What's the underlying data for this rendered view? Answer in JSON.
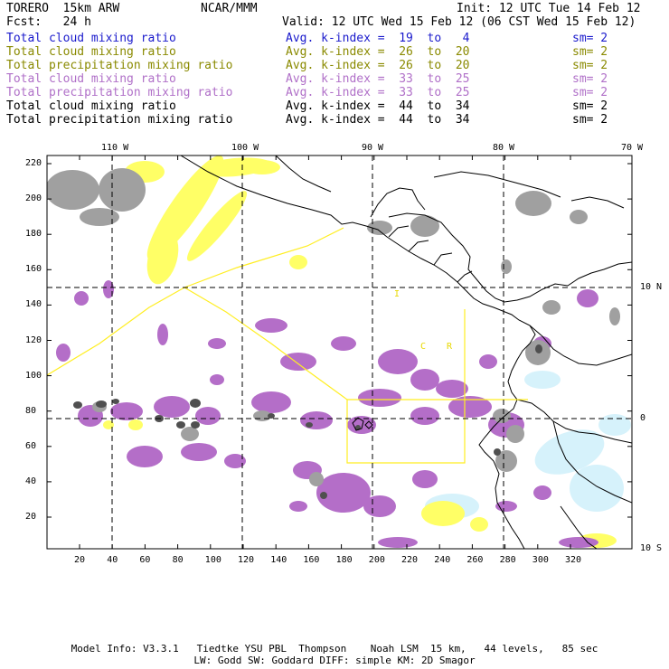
{
  "header": {
    "model": "TORERO  15km ARW",
    "org": "NCAR/MMM",
    "init": "Init: 12 UTC Tue 14 Feb 12",
    "fcst": "Fcst:   24 h",
    "valid": "Valid: 12 UTC Wed 15 Feb 12 (06 CST Wed 15 Feb 12)"
  },
  "legend": [
    {
      "name": "Total cloud mixing ratio",
      "kindex": "Avg. k-index =  19  to   4",
      "sm": "sm= 2",
      "color": "#1a1acc"
    },
    {
      "name": "Total cloud mixing ratio",
      "kindex": "Avg. k-index =  26  to  20",
      "sm": "sm= 2",
      "color": "#8a8a00"
    },
    {
      "name": "Total precipitation mixing ratio",
      "kindex": "Avg. k-index =  26  to  20",
      "sm": "sm= 2",
      "color": "#8a8a00"
    },
    {
      "name": "Total cloud mixing ratio",
      "kindex": "Avg. k-index =  33  to  25",
      "sm": "sm= 2",
      "color": "#b070c8"
    },
    {
      "name": "Total precipitation mixing ratio",
      "kindex": "Avg. k-index =  33  to  25",
      "sm": "sm= 2",
      "color": "#b070c8"
    },
    {
      "name": "Total cloud mixing ratio",
      "kindex": "Avg. k-index =  44  to  34",
      "sm": "sm= 2",
      "color": "#000000"
    },
    {
      "name": "Total precipitation mixing ratio",
      "kindex": "Avg. k-index =  44  to  34",
      "sm": "sm= 2",
      "color": "#000000"
    }
  ],
  "map": {
    "lon_labels": [
      "110 W",
      "100 W",
      "90 W",
      "80 W",
      "70 W"
    ],
    "lat_labels": [
      "10 N",
      "0",
      "10 S"
    ],
    "y_ticks": [
      "220",
      "200",
      "180",
      "160",
      "140",
      "120",
      "100",
      "80",
      "60",
      "40",
      "20"
    ],
    "x_ticks": [
      "20",
      "40",
      "60",
      "80",
      "100",
      "120",
      "140",
      "160",
      "180",
      "200",
      "220",
      "240",
      "260",
      "280",
      "300",
      "320"
    ],
    "region_labels": [
      "I",
      "C",
      "R"
    ],
    "colors": {
      "frame": "#000000",
      "purple": "#b46ec8",
      "gray": "#a0a0a0",
      "dark": "#505050",
      "yellow": "#ffff66",
      "cyan": "#d6f2fb",
      "box": "#ffee22"
    }
  },
  "footer": {
    "line1": "Model Info: V3.3.1   Tiedtke YSU PBL  Thompson    Noah LSM  15 km,   44 levels,   85 sec",
    "line2": "LW: Godd SW: Goddard DIFF: simple KM: 2D Smagor"
  }
}
